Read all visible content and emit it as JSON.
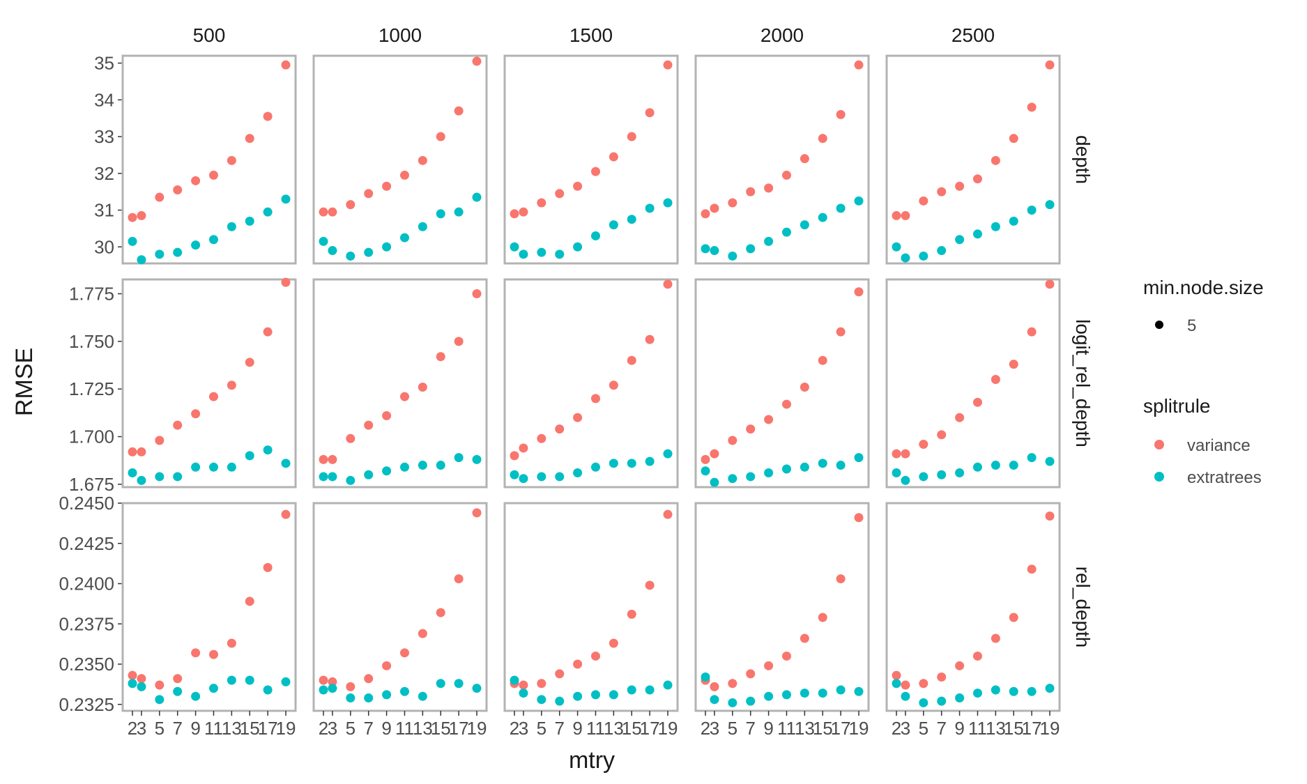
{
  "chart_data": {
    "type": "scatter",
    "facet_columns": [
      "500",
      "1000",
      "1500",
      "2000",
      "2500"
    ],
    "facet_rows": [
      "depth",
      "logit_rel_depth",
      "rel_depth"
    ],
    "x": [
      2,
      3,
      5,
      7,
      9,
      11,
      13,
      15,
      17,
      19
    ],
    "x_tick_labels": [
      "2",
      "3",
      "5",
      "7",
      "9",
      "11",
      "13",
      "15",
      "17",
      "19"
    ],
    "xlabel": "mtry",
    "ylabel": "RMSE",
    "y_axes": {
      "depth": {
        "ylim": [
          29.55,
          35.2
        ],
        "ticks": [
          "30",
          "31",
          "32",
          "33",
          "34",
          "35"
        ]
      },
      "logit_rel_depth": {
        "ylim": [
          1.6735,
          1.7825
        ],
        "ticks": [
          "1.675",
          "1.700",
          "1.725",
          "1.750",
          "1.775"
        ]
      },
      "rel_depth": {
        "ylim": [
          0.2321,
          0.245
        ],
        "ticks": [
          "0.2325",
          "0.2350",
          "0.2375",
          "0.2400",
          "0.2425",
          "0.2450"
        ]
      }
    },
    "grid": false,
    "legend_placement": "right",
    "legend": {
      "size_title": "min.node.size",
      "size_entries": [
        "5"
      ],
      "color_title": "splitrule",
      "color_entries": [
        "variance",
        "extratrees"
      ]
    },
    "colors": {
      "variance": "#F8766D",
      "extratrees": "#00BFC4",
      "size_key": "#000000"
    },
    "panels": {
      "depth": {
        "500": {
          "variance": [
            30.8,
            30.85,
            31.35,
            31.55,
            31.8,
            31.95,
            32.35,
            32.95,
            33.55,
            34.95
          ],
          "extratrees": [
            30.15,
            29.65,
            29.8,
            29.85,
            30.05,
            30.2,
            30.55,
            30.7,
            30.95,
            31.3
          ]
        },
        "1000": {
          "variance": [
            30.95,
            30.95,
            31.15,
            31.45,
            31.65,
            31.95,
            32.35,
            33.0,
            33.7,
            35.05
          ],
          "extratrees": [
            30.15,
            29.9,
            29.75,
            29.85,
            30.0,
            30.25,
            30.55,
            30.9,
            30.95,
            31.35
          ]
        },
        "1500": {
          "variance": [
            30.9,
            30.95,
            31.2,
            31.45,
            31.65,
            32.05,
            32.45,
            33.0,
            33.65,
            34.95
          ],
          "extratrees": [
            30.0,
            29.8,
            29.85,
            29.8,
            30.0,
            30.3,
            30.6,
            30.75,
            31.05,
            31.2
          ]
        },
        "2000": {
          "variance": [
            30.9,
            31.05,
            31.2,
            31.5,
            31.6,
            31.95,
            32.4,
            32.95,
            33.6,
            34.95
          ],
          "extratrees": [
            29.95,
            29.9,
            29.75,
            29.95,
            30.15,
            30.4,
            30.6,
            30.8,
            31.05,
            31.25
          ]
        },
        "2500": {
          "variance": [
            30.85,
            30.85,
            31.25,
            31.5,
            31.65,
            31.85,
            32.35,
            32.95,
            33.8,
            34.95
          ],
          "extratrees": [
            30.0,
            29.7,
            29.75,
            29.9,
            30.2,
            30.35,
            30.55,
            30.7,
            31.0,
            31.15
          ]
        }
      },
      "logit_rel_depth": {
        "500": {
          "variance": [
            1.692,
            1.692,
            1.698,
            1.706,
            1.712,
            1.721,
            1.727,
            1.739,
            1.755,
            1.781
          ],
          "extratrees": [
            1.681,
            1.677,
            1.679,
            1.679,
            1.684,
            1.684,
            1.684,
            1.69,
            1.693,
            1.686
          ]
        },
        "1000": {
          "variance": [
            1.688,
            1.688,
            1.699,
            1.706,
            1.711,
            1.721,
            1.726,
            1.742,
            1.75,
            1.775
          ],
          "extratrees": [
            1.679,
            1.679,
            1.677,
            1.68,
            1.682,
            1.684,
            1.685,
            1.685,
            1.689,
            1.688
          ]
        },
        "1500": {
          "variance": [
            1.69,
            1.694,
            1.699,
            1.704,
            1.71,
            1.72,
            1.727,
            1.74,
            1.751,
            1.78
          ],
          "extratrees": [
            1.68,
            1.678,
            1.679,
            1.679,
            1.681,
            1.684,
            1.686,
            1.686,
            1.687,
            1.691
          ]
        },
        "2000": {
          "variance": [
            1.688,
            1.691,
            1.698,
            1.704,
            1.709,
            1.717,
            1.726,
            1.74,
            1.755,
            1.776
          ],
          "extratrees": [
            1.682,
            1.676,
            1.678,
            1.679,
            1.681,
            1.683,
            1.684,
            1.686,
            1.685,
            1.689
          ]
        },
        "2500": {
          "variance": [
            1.691,
            1.691,
            1.696,
            1.701,
            1.71,
            1.718,
            1.73,
            1.738,
            1.755,
            1.78
          ],
          "extratrees": [
            1.681,
            1.677,
            1.679,
            1.68,
            1.681,
            1.684,
            1.685,
            1.685,
            1.689,
            1.687
          ]
        }
      },
      "rel_depth": {
        "500": {
          "variance": [
            0.2343,
            0.2341,
            0.2337,
            0.2341,
            0.2357,
            0.2356,
            0.2363,
            0.2389,
            0.241,
            0.2443
          ],
          "extratrees": [
            0.2338,
            0.2336,
            0.2328,
            0.2333,
            0.233,
            0.2335,
            0.234,
            0.234,
            0.2334,
            0.2339
          ]
        },
        "1000": {
          "variance": [
            0.234,
            0.2339,
            0.2336,
            0.2341,
            0.2349,
            0.2357,
            0.2369,
            0.2382,
            0.2403,
            0.2444
          ],
          "extratrees": [
            0.2334,
            0.2335,
            0.2329,
            0.2329,
            0.2331,
            0.2333,
            0.233,
            0.2338,
            0.2338,
            0.2335
          ]
        },
        "1500": {
          "variance": [
            0.2338,
            0.2337,
            0.2338,
            0.2344,
            0.235,
            0.2355,
            0.2363,
            0.2381,
            0.2399,
            0.2443
          ],
          "extratrees": [
            0.234,
            0.2332,
            0.2328,
            0.2327,
            0.233,
            0.2331,
            0.2331,
            0.2334,
            0.2334,
            0.2337
          ]
        },
        "2000": {
          "variance": [
            0.234,
            0.2336,
            0.2338,
            0.2344,
            0.2349,
            0.2355,
            0.2366,
            0.2379,
            0.2403,
            0.2441
          ],
          "extratrees": [
            0.2342,
            0.2328,
            0.2326,
            0.2327,
            0.233,
            0.2331,
            0.2332,
            0.2332,
            0.2334,
            0.2333
          ]
        },
        "2500": {
          "variance": [
            0.2343,
            0.2337,
            0.2338,
            0.2342,
            0.2349,
            0.2355,
            0.2366,
            0.2379,
            0.2409,
            0.2442
          ],
          "extratrees": [
            0.2338,
            0.233,
            0.2326,
            0.2327,
            0.2329,
            0.2332,
            0.2334,
            0.2333,
            0.2333,
            0.2335
          ]
        }
      }
    }
  }
}
